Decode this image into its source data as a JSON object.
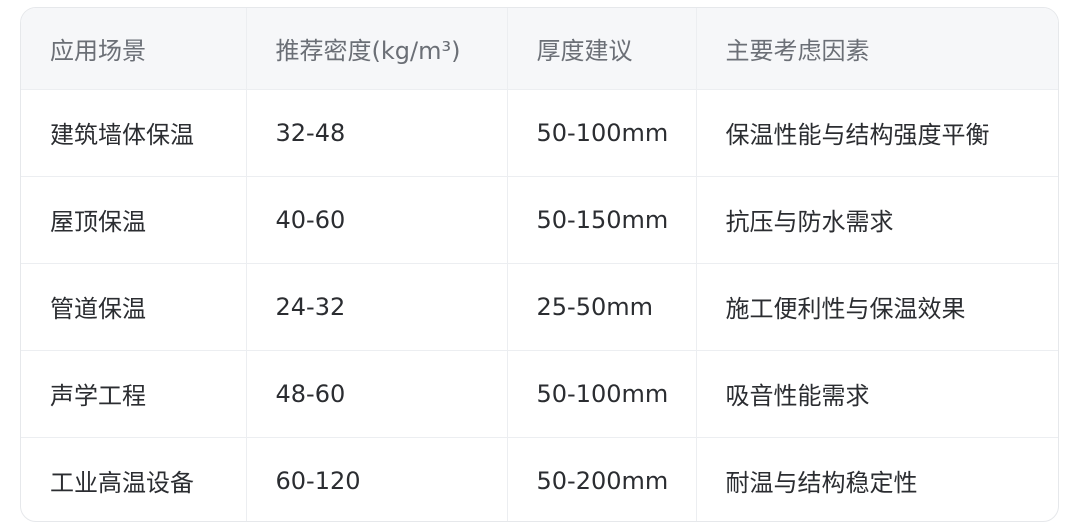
{
  "table": {
    "header": [
      "应用场景",
      "推荐密度(kg/m³)",
      "厚度建议",
      "主要考虑因素"
    ],
    "rows": [
      [
        "建筑墙体保温",
        "32-48",
        "50-100mm",
        "保温性能与结构强度平衡"
      ],
      [
        "屋顶保温",
        "40-60",
        "50-150mm",
        "抗压与防水需求"
      ],
      [
        "管道保温",
        "24-32",
        "25-50mm",
        "施工便利性与保温效果"
      ],
      [
        "声学工程",
        "48-60",
        "50-100mm",
        "吸音性能需求"
      ],
      [
        "工业高温设备",
        "60-120",
        "50-200mm",
        "耐温与结构稳定性"
      ]
    ]
  }
}
